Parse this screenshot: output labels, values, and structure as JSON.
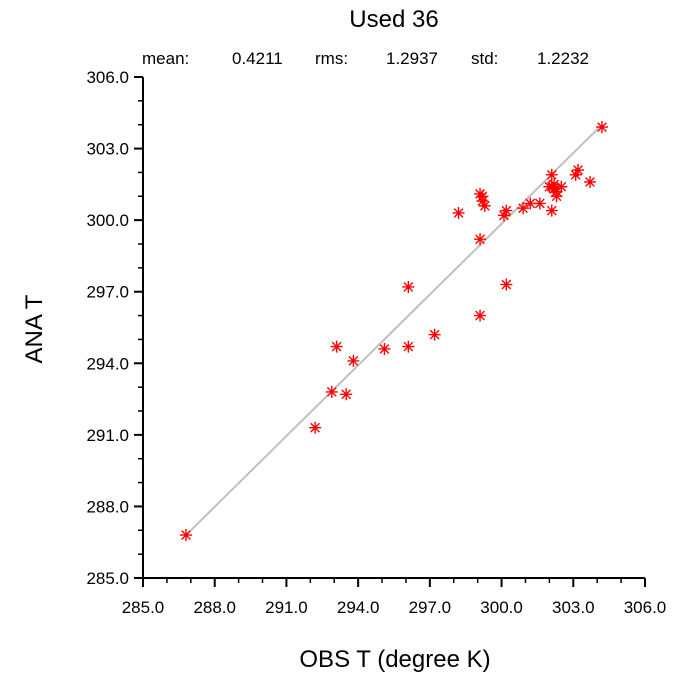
{
  "chart_data": {
    "type": "scatter",
    "title": "Used  36",
    "stats": {
      "mean_label": "mean:",
      "mean_value": "0.4211",
      "rms_label": "rms:",
      "rms_value": "1.2937",
      "std_label": "std:",
      "std_value": "1.2232"
    },
    "xlabel": "OBS T  (degree K)",
    "ylabel": "ANA T",
    "xlim": [
      285.0,
      306.0
    ],
    "ylim": [
      285.0,
      306.0
    ],
    "x_ticks": [
      "285.0",
      "288.0",
      "291.0",
      "294.0",
      "297.0",
      "300.0",
      "303.0",
      "306.0"
    ],
    "y_ticks": [
      "285.0",
      "288.0",
      "291.0",
      "294.0",
      "297.0",
      "300.0",
      "303.0",
      "306.0"
    ],
    "marker": "*",
    "marker_color": "#ff0000",
    "fit_line_color": "#c0c0c0",
    "fit_line": {
      "x": [
        286.8,
        304.2
      ],
      "y": [
        286.8,
        304.0
      ]
    },
    "points": [
      [
        286.8,
        286.8
      ],
      [
        292.2,
        291.3
      ],
      [
        292.9,
        292.8
      ],
      [
        293.5,
        292.7
      ],
      [
        293.1,
        294.7
      ],
      [
        293.8,
        294.1
      ],
      [
        295.1,
        294.6
      ],
      [
        296.1,
        294.7
      ],
      [
        297.2,
        295.2
      ],
      [
        296.1,
        297.2
      ],
      [
        299.1,
        296.0
      ],
      [
        300.2,
        297.3
      ],
      [
        298.2,
        300.3
      ],
      [
        299.1,
        299.2
      ],
      [
        300.1,
        300.2
      ],
      [
        300.2,
        300.4
      ],
      [
        299.1,
        301.1
      ],
      [
        299.2,
        300.8
      ],
      [
        299.3,
        300.6
      ],
      [
        299.2,
        301.0
      ],
      [
        300.9,
        300.5
      ],
      [
        301.2,
        300.7
      ],
      [
        301.6,
        300.7
      ],
      [
        302.0,
        301.4
      ],
      [
        302.1,
        301.4
      ],
      [
        302.1,
        300.4
      ],
      [
        302.1,
        301.9
      ],
      [
        302.2,
        301.3
      ],
      [
        302.3,
        301.2
      ],
      [
        302.2,
        301.5
      ],
      [
        302.3,
        301.0
      ],
      [
        302.5,
        301.4
      ],
      [
        303.1,
        301.9
      ],
      [
        303.2,
        302.1
      ],
      [
        303.7,
        301.6
      ],
      [
        304.2,
        303.9
      ]
    ]
  }
}
